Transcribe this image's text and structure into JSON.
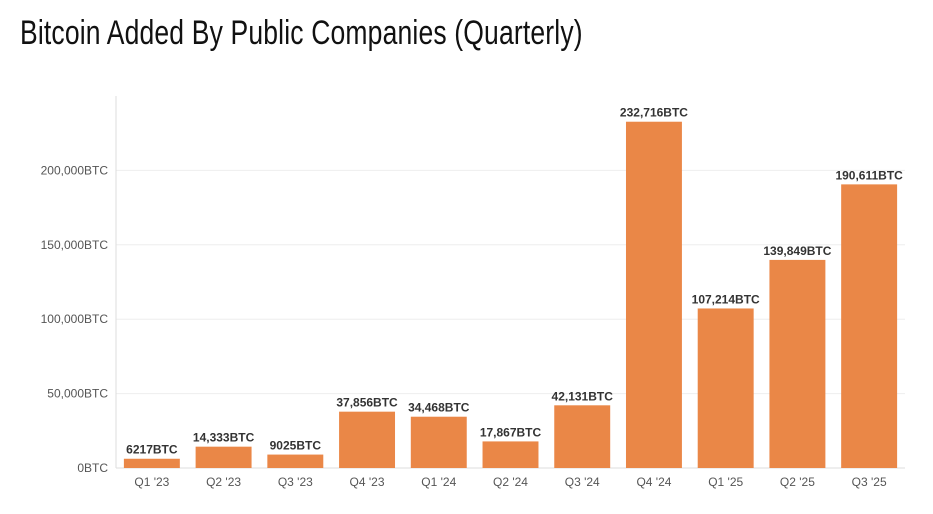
{
  "title": "Bitcoin Added By Public Companies (Quarterly)",
  "colors": {
    "bar": "#EA8747",
    "grid": "#eeeeee",
    "axis": "#dddddd"
  },
  "chart_data": {
    "type": "bar",
    "title": "Bitcoin Added By Public Companies (Quarterly)",
    "xlabel": "",
    "ylabel": "",
    "ylim": [
      0,
      250000
    ],
    "yticks": [
      {
        "value": 0,
        "label": "0BTC"
      },
      {
        "value": 50000,
        "label": "50,000BTC"
      },
      {
        "value": 100000,
        "label": "100,000BTC"
      },
      {
        "value": 150000,
        "label": "150,000BTC"
      },
      {
        "value": 200000,
        "label": "200,000BTC"
      }
    ],
    "categories": [
      "Q1 '23",
      "Q2 '23",
      "Q3 '23",
      "Q4 '23",
      "Q1 '24",
      "Q2 '24",
      "Q3 '24",
      "Q4 '24",
      "Q1 '25",
      "Q2 '25",
      "Q3 '25"
    ],
    "values": [
      6217,
      14333,
      9025,
      37856,
      34468,
      17867,
      42131,
      232716,
      107214,
      139849,
      190611
    ],
    "data_labels": [
      "6217BTC",
      "14,333BTC",
      "9025BTC",
      "37,856BTC",
      "34,468BTC",
      "17,867BTC",
      "42,131BTC",
      "232,716BTC",
      "107,214BTC",
      "139,849BTC",
      "190,611BTC"
    ],
    "grid": true,
    "legend": "none"
  }
}
